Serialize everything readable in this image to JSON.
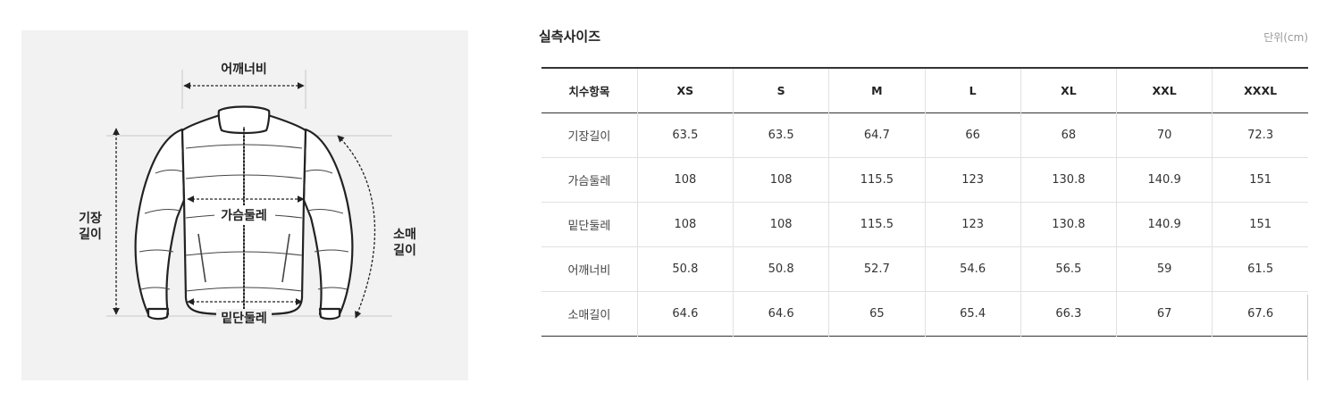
{
  "diagram": {
    "shoulder_label": "어깨너비",
    "chest_label": "가슴둘레",
    "hem_label": "밑단둘레",
    "length_label_line1": "기장",
    "length_label_line2": "길이",
    "sleeve_label_line1": "소매",
    "sleeve_label_line2": "길이"
  },
  "section": {
    "title": "실측사이즈",
    "unit": "단위(cm)"
  },
  "table": {
    "header": [
      "치수항목",
      "XS",
      "S",
      "M",
      "L",
      "XL",
      "XXL",
      "XXXL"
    ],
    "rows": [
      [
        "기장길이",
        "63.5",
        "63.5",
        "64.7",
        "66",
        "68",
        "70",
        "72.3"
      ],
      [
        "가슴둘레",
        "108",
        "108",
        "115.5",
        "123",
        "130.8",
        "140.9",
        "151"
      ],
      [
        "밑단둘레",
        "108",
        "108",
        "115.5",
        "123",
        "130.8",
        "140.9",
        "151"
      ],
      [
        "어깨너비",
        "50.8",
        "50.8",
        "52.7",
        "54.6",
        "56.5",
        "59",
        "61.5"
      ],
      [
        "소매길이",
        "64.6",
        "64.6",
        "65",
        "65.4",
        "66.3",
        "67",
        "67.6"
      ]
    ]
  }
}
